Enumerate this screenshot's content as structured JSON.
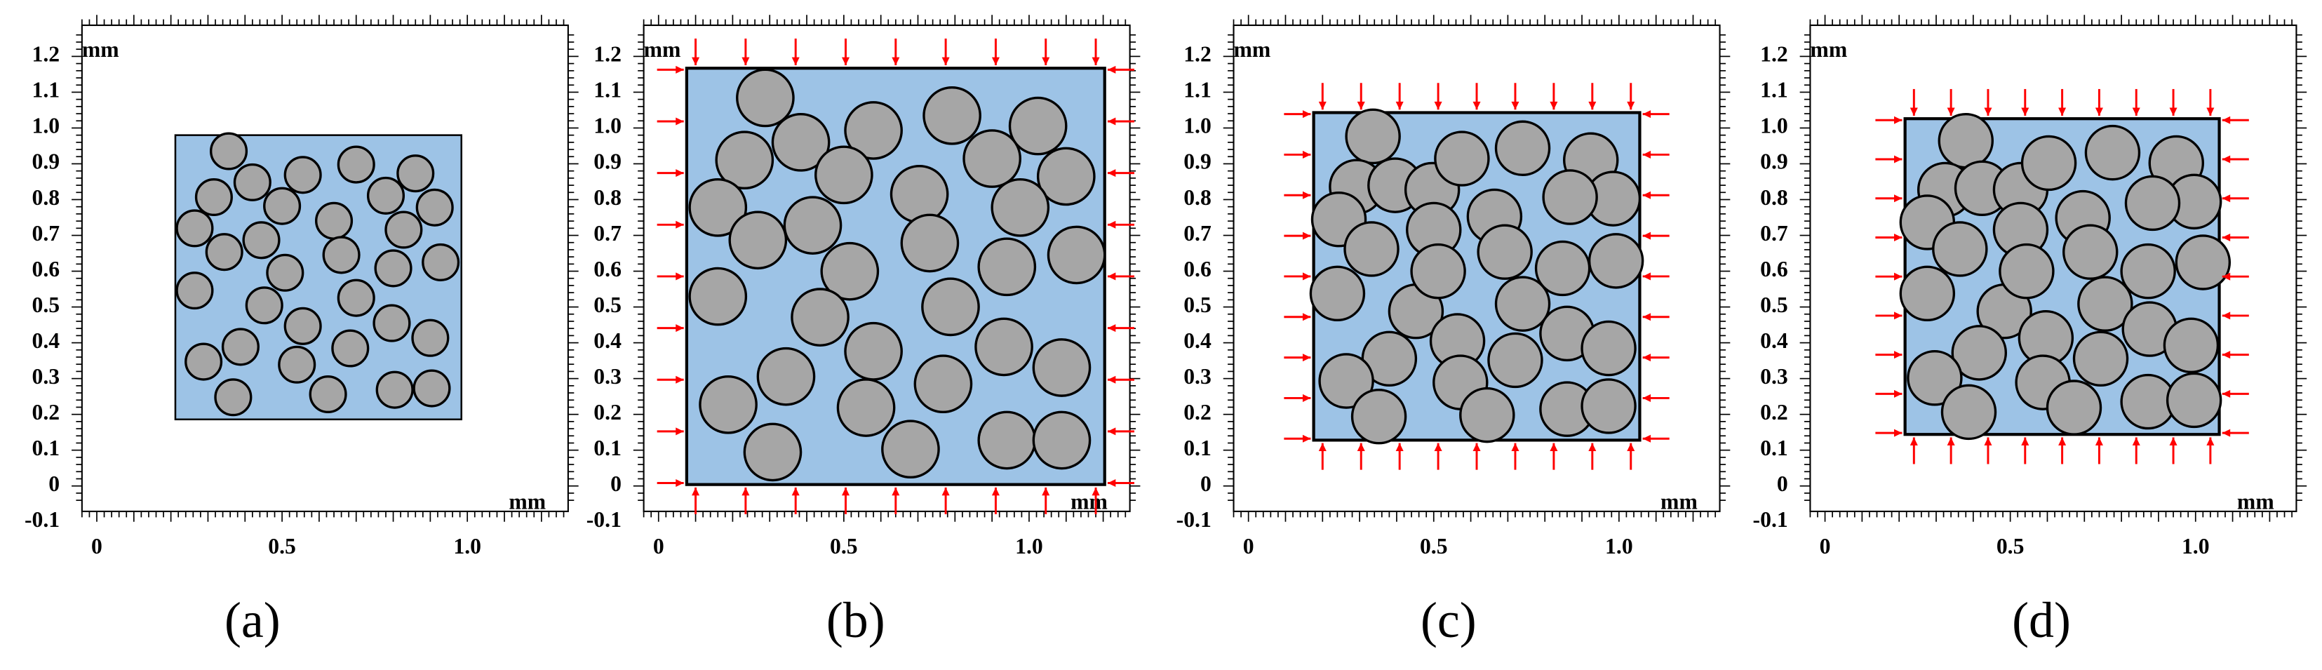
{
  "panels": [
    {
      "label": "(a)",
      "y_unit": "mm",
      "x_unit": "mm",
      "yticks": [
        1.2,
        1.1,
        {
          "value": 1,
          "label": "1.0"
        },
        0.9,
        0.8,
        0.7,
        0.6,
        0.5,
        0.4,
        0.3,
        0.2,
        0.1,
        0,
        -0.1
      ],
      "xticks": [
        0,
        0.5,
        {
          "value": 1,
          "label": "1.0"
        }
      ]
    },
    {
      "label": "(b)",
      "y_unit": "mm",
      "x_unit": "mm",
      "yticks": [
        1.2,
        1.1,
        {
          "value": 1,
          "label": "1.0"
        },
        0.9,
        0.8,
        0.7,
        0.6,
        0.5,
        0.4,
        0.3,
        0.2,
        0.1,
        0,
        -0.1
      ],
      "xticks": [
        0,
        0.5,
        {
          "value": 1,
          "label": "1.0"
        }
      ]
    },
    {
      "label": "(c)",
      "y_unit": "mm",
      "x_unit": "mm",
      "yticks": [
        1.2,
        1.1,
        {
          "value": 1,
          "label": "1.0"
        },
        0.9,
        0.8,
        0.7,
        0.6,
        0.5,
        0.4,
        0.3,
        0.2,
        0.1,
        0,
        -0.1
      ],
      "xticks": [
        0,
        0.5,
        {
          "value": 1,
          "label": "1.0"
        }
      ]
    },
    {
      "label": "(d)",
      "y_unit": "mm",
      "x_unit": "mm",
      "yticks": [
        1.2,
        1.1,
        {
          "value": 1,
          "label": "1.0"
        },
        0.9,
        0.8,
        0.7,
        0.6,
        0.5,
        0.4,
        0.3,
        0.2,
        0.1,
        0,
        -0.1
      ],
      "xticks": [
        0,
        0.5,
        {
          "value": 1,
          "label": "1.0"
        }
      ]
    }
  ]
}
